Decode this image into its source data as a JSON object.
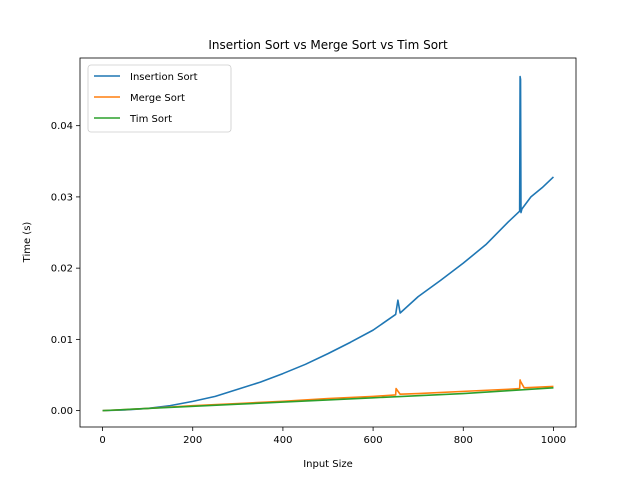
{
  "chart_data": {
    "type": "line",
    "title": "Insertion Sort vs Merge Sort vs Tim Sort",
    "xlabel": "Input Size",
    "ylabel": "Time (s)",
    "xlim": [
      -50,
      1050
    ],
    "ylim": [
      -0.0023,
      0.0495
    ],
    "xticks": [
      0,
      200,
      400,
      600,
      800,
      1000
    ],
    "xtick_labels": [
      "0",
      "200",
      "400",
      "600",
      "800",
      "1000"
    ],
    "yticks": [
      0.0,
      0.01,
      0.02,
      0.03,
      0.04
    ],
    "ytick_labels": [
      "0.00",
      "0.01",
      "0.02",
      "0.03",
      "0.04"
    ],
    "grid": false,
    "legend_position": "top-left",
    "series": [
      {
        "name": "Insertion Sort",
        "color": "#1f77b4",
        "x": [
          0,
          50,
          100,
          150,
          200,
          250,
          300,
          350,
          400,
          450,
          500,
          550,
          600,
          650,
          655,
          660,
          700,
          750,
          800,
          850,
          900,
          925,
          926,
          927,
          928,
          930,
          950,
          975,
          1000
        ],
        "y": [
          0.0,
          0.0001,
          0.0003,
          0.0007,
          0.0013,
          0.002,
          0.003,
          0.004,
          0.0052,
          0.0065,
          0.008,
          0.0096,
          0.0113,
          0.0135,
          0.0155,
          0.0137,
          0.016,
          0.0183,
          0.0207,
          0.0233,
          0.0265,
          0.028,
          0.0469,
          0.0465,
          0.0278,
          0.0283,
          0.03,
          0.0313,
          0.0328
        ]
      },
      {
        "name": "Merge Sort",
        "color": "#ff7f0e",
        "x": [
          0,
          100,
          200,
          300,
          400,
          500,
          600,
          650,
          651,
          652,
          660,
          700,
          800,
          900,
          925,
          926,
          927,
          935,
          1000
        ],
        "y": [
          0.0,
          0.0003,
          0.0007,
          0.001,
          0.0013,
          0.0017,
          0.002,
          0.0022,
          0.0031,
          0.003,
          0.0023,
          0.0024,
          0.0027,
          0.003,
          0.0031,
          0.0043,
          0.0041,
          0.0032,
          0.0034
        ]
      },
      {
        "name": "Tim Sort",
        "color": "#2ca02c",
        "x": [
          0,
          100,
          200,
          300,
          400,
          500,
          600,
          700,
          800,
          900,
          1000
        ],
        "y": [
          0.0,
          0.0003,
          0.0006,
          0.0009,
          0.0012,
          0.0015,
          0.0018,
          0.0021,
          0.0024,
          0.0028,
          0.0032
        ]
      }
    ]
  }
}
